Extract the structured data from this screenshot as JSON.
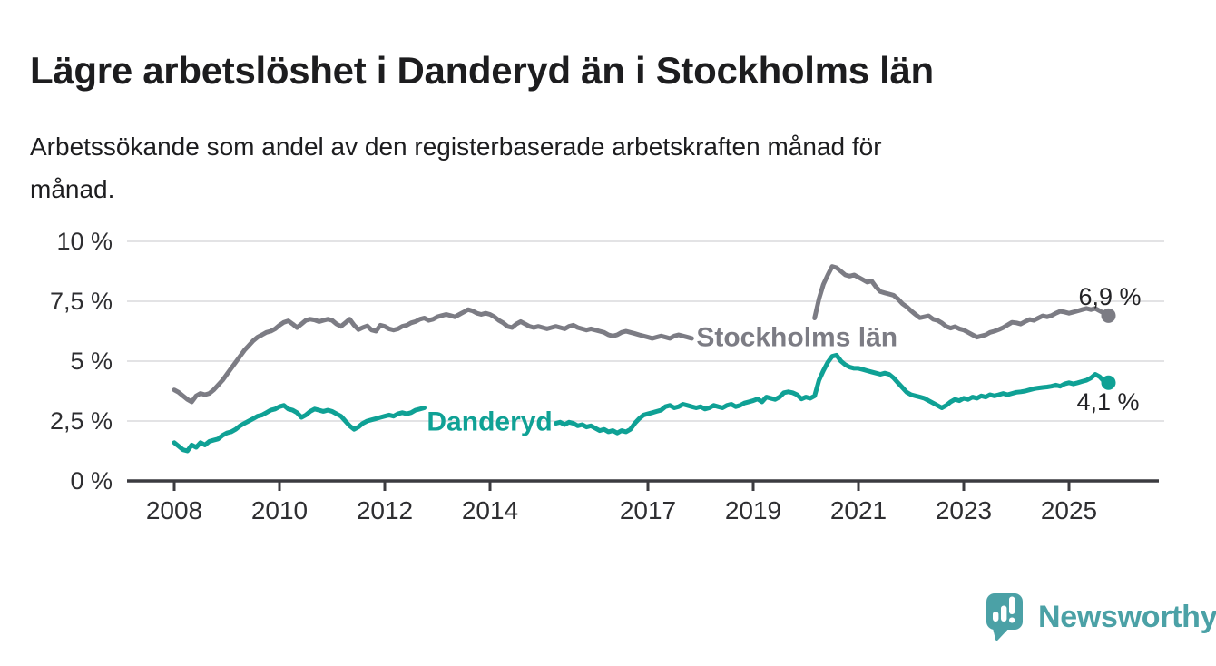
{
  "header": {
    "title": "Lägre arbetslöshet i Danderyd än i Stockholms län",
    "subtitle_lines": [
      "Arbetssökande som andel av den registerbaserade arbetskraften månad för",
      "månad."
    ]
  },
  "footer": {
    "brand": "Newsworthy",
    "logo_icon": "speech-bubble-bar-chart-icon",
    "brand_color": "#4ba1a6"
  },
  "colors": {
    "stockholm_line": "#7c7c84",
    "danderyd_line": "#0fa195",
    "axis_line": "#3b3b40",
    "grid_line": "#e3e3e5",
    "tick_text": "#2e2e31",
    "end_label_text": "#232326"
  },
  "chart_data": {
    "type": "line",
    "unit": "%",
    "frequency": "monthly",
    "x_start": "2008-01",
    "x_end": "2025-10",
    "grid": "horizontal-only",
    "legend_position": "inline-labels",
    "ylim": [
      0,
      10
    ],
    "y_ticks": [
      {
        "value": 0,
        "label": "0 %"
      },
      {
        "value": 2.5,
        "label": "2,5 %"
      },
      {
        "value": 5,
        "label": "5 %"
      },
      {
        "value": 7.5,
        "label": "7,5 %"
      },
      {
        "value": 10,
        "label": "10 %"
      }
    ],
    "x_ticks": [
      {
        "year": 2008,
        "label": "2008"
      },
      {
        "year": 2010,
        "label": "2010"
      },
      {
        "year": 2012,
        "label": "2012"
      },
      {
        "year": 2014,
        "label": "2014"
      },
      {
        "year": 2017,
        "label": "2017"
      },
      {
        "year": 2019,
        "label": "2019"
      },
      {
        "year": 2021,
        "label": "2021"
      },
      {
        "year": 2023,
        "label": "2023"
      },
      {
        "year": 2025,
        "label": "2025"
      }
    ],
    "series": [
      {
        "name": "Stockholms län",
        "color": "#7c7c84",
        "end_label": "6,9 %",
        "end_value": 6.9,
        "inline_label": {
          "t": 2017.92,
          "v": 5.62
        },
        "label_gap": [
          119,
          145
        ],
        "values": [
          3.8,
          3.7,
          3.55,
          3.4,
          3.3,
          3.55,
          3.65,
          3.6,
          3.65,
          3.8,
          4.0,
          4.2,
          4.45,
          4.7,
          4.95,
          5.2,
          5.45,
          5.65,
          5.85,
          6.0,
          6.1,
          6.2,
          6.25,
          6.35,
          6.5,
          6.62,
          6.68,
          6.55,
          6.4,
          6.55,
          6.7,
          6.75,
          6.72,
          6.65,
          6.7,
          6.75,
          6.7,
          6.55,
          6.45,
          6.6,
          6.75,
          6.5,
          6.32,
          6.4,
          6.47,
          6.3,
          6.25,
          6.5,
          6.45,
          6.35,
          6.3,
          6.35,
          6.45,
          6.5,
          6.6,
          6.65,
          6.75,
          6.8,
          6.7,
          6.75,
          6.85,
          6.9,
          6.95,
          6.9,
          6.85,
          6.95,
          7.05,
          7.15,
          7.1,
          7.0,
          6.95,
          7.0,
          6.95,
          6.85,
          6.7,
          6.6,
          6.45,
          6.4,
          6.55,
          6.65,
          6.55,
          6.45,
          6.4,
          6.45,
          6.4,
          6.35,
          6.4,
          6.45,
          6.4,
          6.35,
          6.45,
          6.5,
          6.4,
          6.35,
          6.3,
          6.35,
          6.3,
          6.25,
          6.2,
          6.1,
          6.05,
          6.1,
          6.2,
          6.25,
          6.2,
          6.15,
          6.1,
          6.05,
          6.0,
          5.95,
          6.0,
          6.05,
          6.0,
          5.95,
          6.05,
          6.1,
          6.05,
          6.0,
          5.95,
          6.0,
          6.05,
          6.1,
          6.05,
          6.0,
          5.95,
          5.9,
          6.0,
          6.05,
          6.0,
          5.95,
          5.9,
          5.95,
          6.0,
          6.05,
          6.0,
          5.95,
          6.0,
          6.05,
          6.15,
          6.2,
          6.15,
          6.1,
          6.15,
          6.2,
          6.3,
          6.4,
          6.8,
          7.6,
          8.2,
          8.6,
          8.95,
          8.9,
          8.75,
          8.6,
          8.55,
          8.6,
          8.5,
          8.4,
          8.3,
          8.35,
          8.1,
          7.9,
          7.85,
          7.8,
          7.75,
          7.6,
          7.4,
          7.27,
          7.1,
          6.95,
          6.81,
          6.85,
          6.89,
          6.75,
          6.7,
          6.6,
          6.45,
          6.38,
          6.44,
          6.35,
          6.3,
          6.2,
          6.1,
          6.0,
          6.05,
          6.1,
          6.2,
          6.25,
          6.32,
          6.4,
          6.51,
          6.62,
          6.6,
          6.55,
          6.65,
          6.74,
          6.7,
          6.8,
          6.89,
          6.85,
          6.9,
          7.0,
          7.08,
          7.05,
          7.0,
          7.05,
          7.1,
          7.15,
          7.2,
          7.15,
          7.2,
          7.1,
          7.0,
          6.9
        ]
      },
      {
        "name": "Danderyd",
        "color": "#0fa195",
        "end_label": "4,1 %",
        "end_value": 4.1,
        "inline_label": {
          "t": 2012.8,
          "v": 2.1
        },
        "label_gap": [
          58,
          86
        ],
        "values": [
          1.6,
          1.45,
          1.3,
          1.25,
          1.5,
          1.4,
          1.6,
          1.5,
          1.65,
          1.7,
          1.75,
          1.9,
          2.0,
          2.05,
          2.15,
          2.3,
          2.4,
          2.5,
          2.6,
          2.7,
          2.75,
          2.85,
          2.95,
          3.0,
          3.1,
          3.15,
          3.0,
          2.95,
          2.85,
          2.65,
          2.75,
          2.9,
          3.0,
          2.95,
          2.9,
          2.95,
          2.9,
          2.8,
          2.7,
          2.5,
          2.3,
          2.15,
          2.25,
          2.4,
          2.5,
          2.55,
          2.6,
          2.65,
          2.7,
          2.75,
          2.7,
          2.8,
          2.85,
          2.8,
          2.85,
          2.95,
          3.0,
          3.05,
          3.0,
          2.95,
          2.9,
          2.95,
          3.0,
          2.95,
          2.9,
          2.85,
          2.9,
          2.85,
          2.8,
          2.75,
          2.7,
          2.65,
          2.6,
          2.65,
          2.6,
          2.55,
          2.5,
          2.45,
          2.5,
          2.55,
          2.5,
          2.45,
          2.4,
          2.45,
          2.5,
          2.45,
          2.4,
          2.4,
          2.45,
          2.35,
          2.45,
          2.4,
          2.3,
          2.35,
          2.25,
          2.3,
          2.2,
          2.1,
          2.15,
          2.05,
          2.1,
          2.0,
          2.1,
          2.05,
          2.15,
          2.4,
          2.6,
          2.75,
          2.8,
          2.85,
          2.9,
          2.95,
          3.1,
          3.15,
          3.05,
          3.1,
          3.2,
          3.15,
          3.1,
          3.05,
          3.1,
          3.0,
          3.05,
          3.15,
          3.1,
          3.05,
          3.15,
          3.2,
          3.1,
          3.15,
          3.25,
          3.3,
          3.35,
          3.42,
          3.3,
          3.5,
          3.45,
          3.4,
          3.5,
          3.68,
          3.72,
          3.68,
          3.6,
          3.42,
          3.5,
          3.45,
          3.55,
          4.2,
          4.6,
          4.95,
          5.2,
          5.25,
          5.0,
          4.85,
          4.75,
          4.7,
          4.7,
          4.65,
          4.6,
          4.55,
          4.5,
          4.45,
          4.5,
          4.45,
          4.3,
          4.1,
          3.9,
          3.7,
          3.6,
          3.55,
          3.5,
          3.45,
          3.35,
          3.25,
          3.15,
          3.05,
          3.15,
          3.3,
          3.4,
          3.35,
          3.45,
          3.4,
          3.5,
          3.45,
          3.55,
          3.5,
          3.6,
          3.55,
          3.6,
          3.65,
          3.6,
          3.65,
          3.7,
          3.72,
          3.75,
          3.8,
          3.85,
          3.88,
          3.9,
          3.92,
          3.95,
          4.0,
          3.95,
          4.05,
          4.1,
          4.05,
          4.1,
          4.15,
          4.2,
          4.3,
          4.45,
          4.35,
          4.15,
          4.1
        ]
      }
    ]
  }
}
